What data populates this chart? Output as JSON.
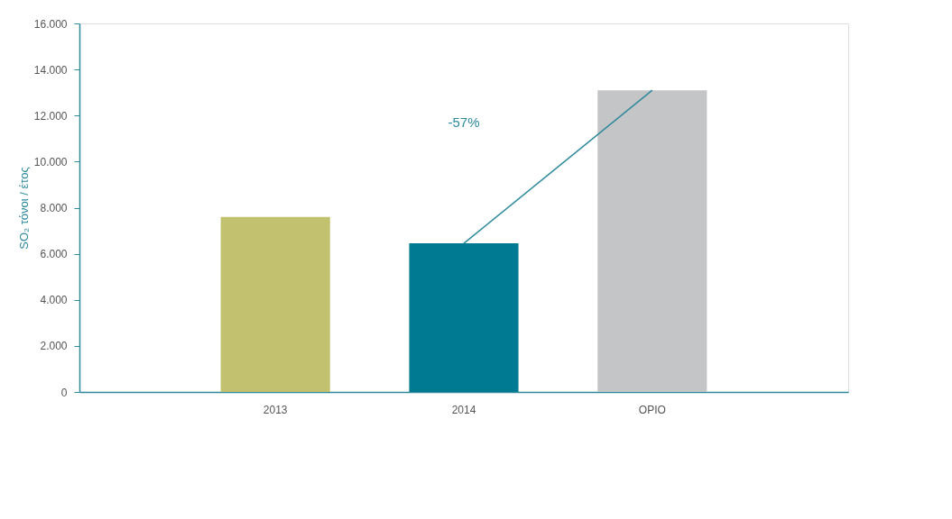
{
  "chart_data": {
    "type": "bar",
    "ylabel": "SO₂ τόνοι / έτος",
    "categories": [
      "2013",
      "2014",
      "ΟΡΙΟ"
    ],
    "values": [
      7600,
      6450,
      13100
    ],
    "colors": [
      "#c2c16f",
      "#007a92",
      "#c4c5c7"
    ],
    "ylim": [
      0,
      16000
    ],
    "yticks": [
      0,
      {
        "value": 2000,
        "label": "2.000"
      },
      {
        "value": 4000,
        "label": "4.000"
      },
      {
        "value": 6000,
        "label": "6.000"
      },
      {
        "value": 8000,
        "label": "8.000"
      },
      {
        "value": 10000,
        "label": "10.000"
      },
      {
        "value": 12000,
        "label": "12.000"
      },
      {
        "value": 14000,
        "label": "14.000"
      },
      {
        "value": 16000,
        "label": "16.000"
      }
    ],
    "annotations": [
      "-57%"
    ],
    "grid": false,
    "legend": false
  }
}
